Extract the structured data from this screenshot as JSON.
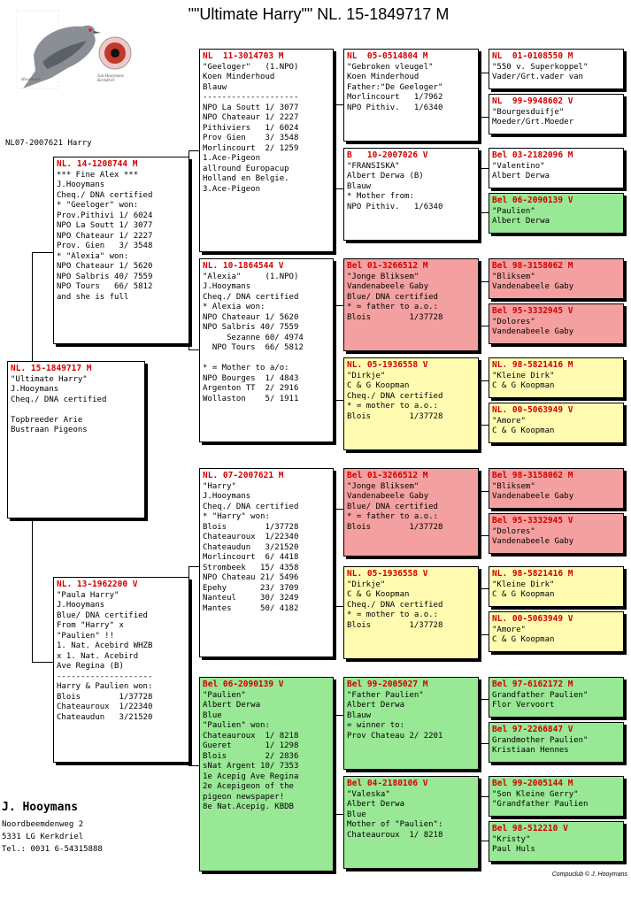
{
  "title": "\"\"Ultimate Harry\"\"   NL. 15-1849717 M",
  "ring_label": "NL07-2007621 Harry",
  "owner": {
    "name": "J. Hooymans",
    "address": "Noordbeemdenweg 2",
    "city": "5331 LG  Kerkdriel",
    "tel": "Tel.: 0031 6-54315888"
  },
  "footer": "Compuclub © J. Hooymans",
  "logo": {
    "caption_left": "Hooymans",
    "caption_right": "Jan Hooymans\nKerkdriel"
  },
  "boxes": {
    "subject": {
      "header": "NL. 15-1849717 M",
      "lines": [
        "\"Ultimate Harry\"",
        "J.Hooymans",
        "Cheq./ DNA certified",
        "",
        "Topbreeder Arie",
        "Bustraan Pigeons"
      ]
    },
    "sire": {
      "header": "NL. 14-1208744 M",
      "lines": [
        "*** Fine Alex ***",
        "J.Hooymans",
        "Cheq./ DNA certified",
        "* \"Geeloger\" won:",
        "Prov.Pithivi 1/ 6024",
        "NPO La Soutt 1/ 3077",
        "NPO Chateaur 1/ 2227",
        "Prov. Gien   3/ 3548",
        "* \"Alexia\" won:",
        "NPO Chateaur 1/ 5620",
        "NPO Salbris 40/ 7559",
        "NPO Tours   66/ 5812",
        "and she is full"
      ]
    },
    "dam": {
      "header": "NL. 13-1962200 V",
      "lines": [
        "\"Paula Harry\"",
        "J.Hooymans",
        "Blue/ DNA certified",
        "From \"Harry\" x",
        "\"Paulien\" !!",
        "1. Nat. Acebird WHZB",
        "x 1. Nat. Acebird",
        "Ave Regina (B)",
        "--------------------",
        "Harry & Paulien won:",
        "Blois        1/37728",
        "Chateauroux  1/22340",
        "Chateaudun   3/21520"
      ]
    },
    "ss": {
      "header": "NL  11-3014703 M",
      "lines": [
        "\"Geeloger\"   (1.NPO)",
        "Koen Minderhoud",
        "Blauw",
        "--------------------",
        "NPO La Soutt 1/ 3077",
        "NPO Chateaur 1/ 2227",
        "Pithiviers   1/ 6024",
        "Prov Gien    3/ 3548",
        "Morlincourt  2/ 1259",
        "1.Ace-Pigeon",
        "allround Europacup",
        "Holland en Belgie.",
        "3.Ace-Pigeon"
      ]
    },
    "sd": {
      "header": "NL. 10-1864544 V",
      "lines": [
        "\"Alexia\"     (1.NPO)",
        "J.Hooymans",
        "Cheq./ DNA certified",
        "* Alexia won:",
        "NPO Chateaur 1/ 5620",
        "NPO Salbris 40/ 7559",
        "     Sezanne 60/ 4974",
        "  NPO Tours  66/ 5812",
        "",
        "* = Mother to a/o:",
        "NPO Bourges  1/ 4843",
        "Argenton TT  2/ 2916",
        "Wollaston    5/ 1911"
      ]
    },
    "ds": {
      "header": "NL. 07-2007621 M",
      "lines": [
        "\"Harry\"",
        "J.Hooymans",
        "Cheq./ DNA certified",
        "* \"Harry\" won:",
        "Blois        1/37728",
        "Chateauroux  1/22340",
        "Chateaudun   3/21520",
        "Morlincourt  6/ 4418",
        "Strombeek   15/ 4358",
        "NPO Chateau 21/ 5496",
        "Epehy       23/ 3709",
        "Nanteul     30/ 3249",
        "Mantes      50/ 4182"
      ]
    },
    "dd": {
      "header": "Bel 06-2090139 V",
      "lines": [
        "\"Paulien\"",
        "Albert Derwa",
        "Blue",
        "\"Paulien\" won:",
        "Chateauroux  1/ 8218",
        "Gueret       1/ 1298",
        "Blois        2/ 2836",
        "sNat Argent 10/ 7353",
        "1e Acepig Ave Regina",
        "2e Acepigeon of the",
        "pigeon newspaper!",
        "8e Nat.Acepig. KBDB"
      ]
    },
    "sss": {
      "header": "NL  05-0514804 M",
      "lines": [
        "\"Gebroken vleugel\"",
        "Koen Minderhoud",
        "Father:\"De Geeloger\"",
        "Morlincourt   1/7962",
        "NPO Pithiv.   1/6340"
      ]
    },
    "ssd": {
      "header": "B   10-2007026 V",
      "lines": [
        "\"FRANSISKA\"",
        "Albert Derwa (B)",
        "Blauw",
        "* Mother from:",
        "NPO Pithiv.   1/6340"
      ]
    },
    "sds": {
      "header": "Bel 01-3266512 M",
      "lines": [
        "\"Jonge Bliksem\"",
        "Vandenabeele Gaby",
        "Blue/ DNA certified",
        "* = father to a.o.:",
        "Blois        1/37728"
      ]
    },
    "sdd": {
      "header": "NL. 05-1936558 V",
      "lines": [
        "\"Dirkje\"",
        "C & G Koopman",
        "Cheq./ DNA certified",
        "* = mother to a.o.:",
        "Blois        1/37728"
      ]
    },
    "dss": {
      "header": "Bel 01-3266512 M",
      "lines": [
        "\"Jonge Bliksem\"",
        "Vandenabeele Gaby",
        "Blue/ DNA certified",
        "* = father to a.o.:",
        "Blois        1/37728"
      ]
    },
    "dsd": {
      "header": "NL. 05-1936558 V",
      "lines": [
        "\"Dirkje\"",
        "C & G Koopman",
        "Cheq./ DNA certified",
        "* = mother to a.o.:",
        "Blois        1/37728"
      ]
    },
    "dds": {
      "header": "Bel 99-2005027 M",
      "lines": [
        "\"Father Paulien\"",
        "Albert Derwa",
        "Blauw",
        "= winner to:",
        "Prov Chateau 2/ 2201"
      ]
    },
    "ddd": {
      "header": "Bel 04-2180106 V",
      "lines": [
        "\"Valeska\"",
        "Albert Derwa",
        "Blue",
        "Mother of \"Paulien\":",
        "Chateauroux  1/ 8218"
      ]
    },
    "g1": {
      "header": "NL  01-0108550 M",
      "lines": [
        "\"550 v. Superkoppel\"",
        "Vader/Grt.vader van"
      ]
    },
    "g2": {
      "header": "NL  99-9948602 V",
      "lines": [
        "\"Bourgesduifje\"",
        "Moeder/Grt.Moeder"
      ]
    },
    "g3": {
      "header": "Bel 03-2182096 M",
      "lines": [
        "\"Valentino\"",
        "Albert Derwa"
      ]
    },
    "g4": {
      "header": "Bel 06-2090139 V",
      "lines": [
        "\"Paulien\"",
        "Albert Derwa"
      ]
    },
    "g5": {
      "header": "Bel 98-3158062 M",
      "lines": [
        "\"Bliksem\"",
        "Vandenabeele Gaby"
      ]
    },
    "g6": {
      "header": "Bel 95-3332945 V",
      "lines": [
        "\"Dolores\"",
        "Vandenabeele Gaby"
      ]
    },
    "g7": {
      "header": "NL. 98-5821416 M",
      "lines": [
        "\"Kleine Dirk\"",
        "C & G Koopman"
      ]
    },
    "g8": {
      "header": "NL. 00-5063949 V",
      "lines": [
        "\"Amore\"",
        "C & G Koopman"
      ]
    },
    "g9": {
      "header": "Bel 98-3158062 M",
      "lines": [
        "\"Bliksem\"",
        "Vandenabeele Gaby"
      ]
    },
    "g10": {
      "header": "Bel 95-3332945 V",
      "lines": [
        "\"Dolores\"",
        "Vandenabeele Gaby"
      ]
    },
    "g11": {
      "header": "NL. 98-5821416 M",
      "lines": [
        "\"Kleine Dirk\"",
        "C & G Koopman"
      ]
    },
    "g12": {
      "header": "NL. 00-5063949 V",
      "lines": [
        "\"Amore\"",
        "C & G Koopman"
      ]
    },
    "g13": {
      "header": "Bel 97-6162172 M",
      "lines": [
        "Grandfather Paulien\"",
        "Flor Vervoort"
      ]
    },
    "g14": {
      "header": "Bel 97-2266847 V",
      "lines": [
        "Grandmother Paulien\"",
        "Kristiaan Hennes"
      ]
    },
    "g15": {
      "header": "Bel 99-2005144 M",
      "lines": [
        "\"Son Kleine Gerry\"",
        "\"Grandfather Paulien"
      ]
    },
    "g16": {
      "header": "Bel 98-512210 V",
      "lines": [
        "\"Kristy\"",
        "Paul Huls"
      ]
    }
  }
}
